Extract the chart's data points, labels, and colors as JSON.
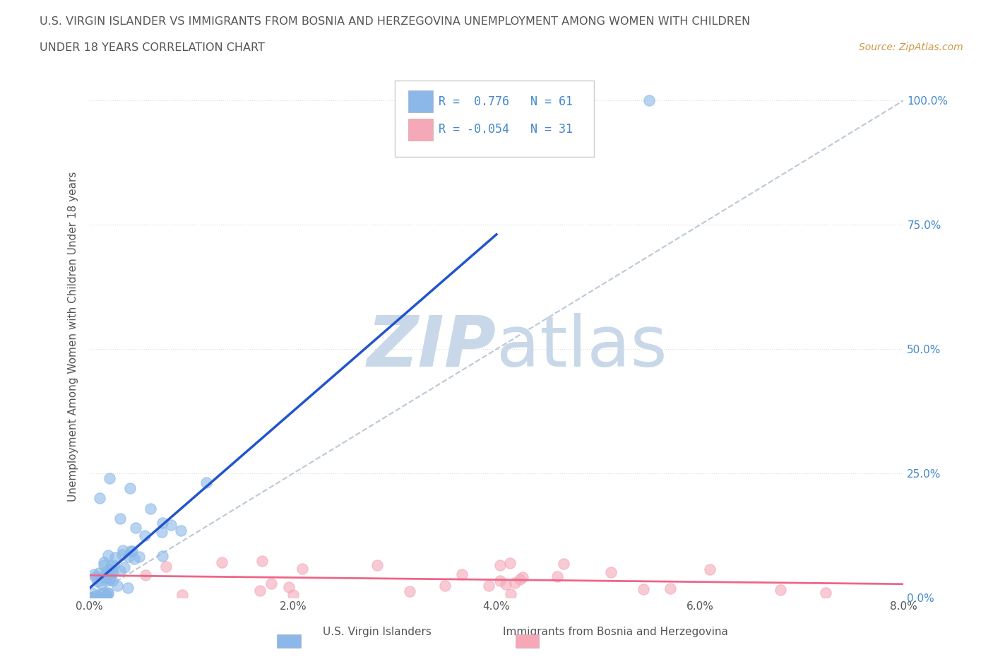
{
  "title_line1": "U.S. VIRGIN ISLANDER VS IMMIGRANTS FROM BOSNIA AND HERZEGOVINA UNEMPLOYMENT AMONG WOMEN WITH CHILDREN",
  "title_line2": "UNDER 18 YEARS CORRELATION CHART",
  "source_text": "Source: ZipAtlas.com",
  "ylabel": "Unemployment Among Women with Children Under 18 years",
  "xlim": [
    0.0,
    0.08
  ],
  "ylim": [
    0.0,
    1.05
  ],
  "xtick_labels": [
    "0.0%",
    "2.0%",
    "4.0%",
    "6.0%",
    "8.0%"
  ],
  "xtick_values": [
    0.0,
    0.02,
    0.04,
    0.06,
    0.08
  ],
  "ytick_labels": [
    "0.0%",
    "25.0%",
    "50.0%",
    "75.0%",
    "100.0%"
  ],
  "ytick_values": [
    0.0,
    0.25,
    0.5,
    0.75,
    1.0
  ],
  "legend_blue_label": "U.S. Virgin Islanders",
  "legend_pink_label": "Immigrants from Bosnia and Herzegovina",
  "R_blue": 0.776,
  "N_blue": 61,
  "R_pink": -0.054,
  "N_pink": 31,
  "blue_color": "#8BB8E8",
  "pink_color": "#F4A8B8",
  "blue_line_color": "#2255CC",
  "pink_line_color": "#EE6688",
  "diag_color": "#AABBCC",
  "watermark_color": "#C8D8E8",
  "background_color": "#FFFFFF",
  "grid_color": "#DDDDDD",
  "title_color": "#555555",
  "axis_label_color": "#555555",
  "right_tick_color": "#4488CC",
  "source_color": "#CC9944"
}
